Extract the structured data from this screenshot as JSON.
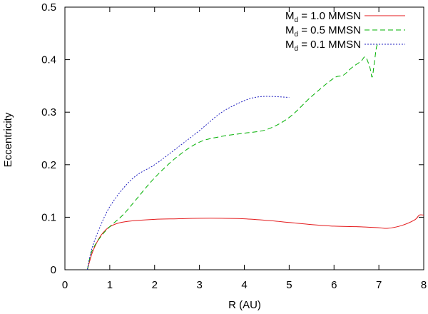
{
  "chart_data": {
    "type": "line",
    "title": "",
    "xlabel": "R (AU)",
    "ylabel": "Eccentricity",
    "xlim": [
      0,
      8
    ],
    "ylim": [
      0,
      0.5
    ],
    "x_ticks": [
      0,
      1,
      2,
      3,
      4,
      5,
      6,
      7,
      8
    ],
    "x_tick_labels": [
      "0",
      "1",
      "2",
      "3",
      "4",
      "5",
      "6",
      "7",
      "8"
    ],
    "y_ticks": [
      0,
      0.1,
      0.2,
      0.3,
      0.4,
      0.5
    ],
    "y_tick_labels": [
      "0",
      "0.1",
      "0.2",
      "0.3",
      "0.4",
      "0.5"
    ],
    "grid": false,
    "legend_position": "top-right",
    "series": [
      {
        "name": "M_d = 1.0 MMSN",
        "label_main": "M",
        "label_sub": "d",
        "label_rest": " = 1.0 MMSN",
        "color": "#e41a1c",
        "dash": "solid",
        "points": [
          [
            0.5,
            0.0
          ],
          [
            0.6,
            0.03
          ],
          [
            0.7,
            0.05
          ],
          [
            0.8,
            0.065
          ],
          [
            0.9,
            0.075
          ],
          [
            1.0,
            0.082
          ],
          [
            1.2,
            0.089
          ],
          [
            1.5,
            0.093
          ],
          [
            2.0,
            0.096
          ],
          [
            2.5,
            0.097
          ],
          [
            3.0,
            0.098
          ],
          [
            3.5,
            0.098
          ],
          [
            4.0,
            0.097
          ],
          [
            4.5,
            0.094
          ],
          [
            5.0,
            0.09
          ],
          [
            5.5,
            0.086
          ],
          [
            6.0,
            0.083
          ],
          [
            6.5,
            0.082
          ],
          [
            7.0,
            0.08
          ],
          [
            7.2,
            0.079
          ],
          [
            7.5,
            0.084
          ],
          [
            7.8,
            0.095
          ],
          [
            7.9,
            0.104
          ],
          [
            8.0,
            0.104
          ]
        ]
      },
      {
        "name": "M_d = 0.5 MMSN",
        "label_main": "M",
        "label_sub": "d",
        "label_rest": " = 0.5 MMSN",
        "color": "#00b000",
        "dash": "7,4",
        "points": [
          [
            0.5,
            0.0
          ],
          [
            0.6,
            0.035
          ],
          [
            0.8,
            0.063
          ],
          [
            1.0,
            0.082
          ],
          [
            1.3,
            0.105
          ],
          [
            1.6,
            0.135
          ],
          [
            2.0,
            0.175
          ],
          [
            2.5,
            0.215
          ],
          [
            3.0,
            0.243
          ],
          [
            3.5,
            0.254
          ],
          [
            4.0,
            0.26
          ],
          [
            4.5,
            0.267
          ],
          [
            5.0,
            0.29
          ],
          [
            5.5,
            0.33
          ],
          [
            6.0,
            0.365
          ],
          [
            6.2,
            0.37
          ],
          [
            6.4,
            0.385
          ],
          [
            6.6,
            0.397
          ],
          [
            6.7,
            0.405
          ],
          [
            6.8,
            0.385
          ],
          [
            6.85,
            0.367
          ],
          [
            6.9,
            0.395
          ],
          [
            6.95,
            0.425
          ],
          [
            7.0,
            0.43
          ]
        ]
      },
      {
        "name": "M_d = 0.1 MMSN",
        "label_main": "M",
        "label_sub": "d",
        "label_rest": " = 0.1 MMSN",
        "color": "#2020c0",
        "dash": "2,2",
        "points": [
          [
            0.5,
            0.0
          ],
          [
            0.6,
            0.04
          ],
          [
            0.8,
            0.085
          ],
          [
            1.0,
            0.12
          ],
          [
            1.3,
            0.155
          ],
          [
            1.6,
            0.18
          ],
          [
            2.0,
            0.2
          ],
          [
            2.5,
            0.232
          ],
          [
            3.0,
            0.265
          ],
          [
            3.5,
            0.3
          ],
          [
            4.0,
            0.322
          ],
          [
            4.3,
            0.329
          ],
          [
            4.6,
            0.33
          ],
          [
            5.0,
            0.328
          ]
        ]
      }
    ]
  }
}
